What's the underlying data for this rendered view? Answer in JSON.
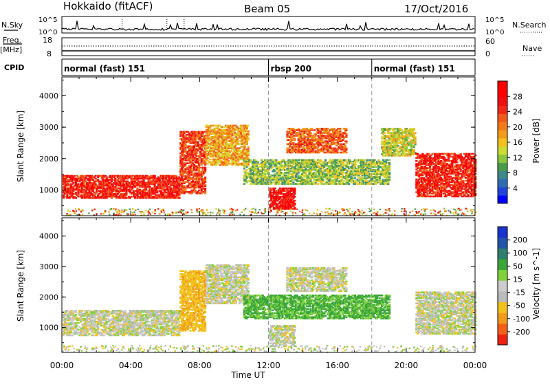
{
  "header": {
    "station": "Hokkaido (fitACF)",
    "beam": "Beam 05",
    "date": "17/Oct/2016"
  },
  "strip_labels": {
    "nsky": "N.Sky",
    "nsearch": "N.Search",
    "freq": "Freq.",
    "freq_unit": "[MHz]",
    "nave": "Nave",
    "cpid": "CPID"
  },
  "strip_ticks": {
    "nsky_left_top": "10^5",
    "nsky_left_bottom": "10^0",
    "nsky_right_top": "10^5",
    "nsky_right_bottom": "10^0",
    "freq_left_top": "18",
    "freq_left_bottom": "8",
    "nave_right_top": "60",
    "nave_right_bottom": "0"
  },
  "cpid_segments": [
    {
      "label": "normal (fast) 151",
      "start_hour": 0,
      "end_hour": 12
    },
    {
      "label": "rbsp 200",
      "start_hour": 12,
      "end_hour": 18
    },
    {
      "label": "normal (fast) 151",
      "start_hour": 18,
      "end_hour": 24
    }
  ],
  "chart_data": [
    {
      "type": "heatmap",
      "panel": "power",
      "ylabel": "Slant Range [km]",
      "xlabel": "",
      "y_ticks": [
        "1000",
        "2000",
        "3000",
        "4000"
      ],
      "xlim": [
        0,
        24
      ],
      "ylim": [
        180,
        4600
      ],
      "colorbar": {
        "label": "Power [dB]",
        "ticks": [
          "4",
          "8",
          "12",
          "16",
          "20",
          "24",
          "28"
        ],
        "range": [
          0,
          32
        ],
        "colors": [
          "#0000ff",
          "#2244dd",
          "#2e6db3",
          "#3a8a8a",
          "#4a9c4a",
          "#8cc63e",
          "#ccdd33",
          "#f2c21a",
          "#f29b1a",
          "#f27a1a",
          "#f25a1a",
          "#f02a1a",
          "#ee1111",
          "#ff0000",
          "#ff0000"
        ]
      },
      "features": [
        {
          "t": [
            0.0,
            6.8
          ],
          "r": [
            750,
            1500
          ],
          "power": 26
        },
        {
          "t": [
            6.8,
            8.3
          ],
          "r": [
            900,
            2900
          ],
          "power": 24
        },
        {
          "t": [
            8.3,
            10.8
          ],
          "r": [
            1800,
            3100
          ],
          "power": 18
        },
        {
          "t": [
            10.5,
            19.0
          ],
          "r": [
            1200,
            2000
          ],
          "power": 12
        },
        {
          "t": [
            12.0,
            13.5
          ],
          "r": [
            400,
            1100
          ],
          "power": 28
        },
        {
          "t": [
            13.0,
            16.5
          ],
          "r": [
            2200,
            3000
          ],
          "power": 22
        },
        {
          "t": [
            18.5,
            20.5
          ],
          "r": [
            2100,
            3000
          ],
          "power": 14
        },
        {
          "t": [
            20.5,
            24.0
          ],
          "r": [
            800,
            2200
          ],
          "power": 26
        }
      ]
    },
    {
      "type": "heatmap",
      "panel": "velocity",
      "ylabel": "Slant Range [km]",
      "xlabel": "Time UT",
      "x_ticks": [
        "00:00",
        "04:00",
        "08:00",
        "12:00",
        "16:00",
        "20:00",
        "00:00"
      ],
      "y_ticks": [
        "1000",
        "2000",
        "3000",
        "4000"
      ],
      "xlim": [
        0,
        24
      ],
      "ylim": [
        180,
        4600
      ],
      "colorbar": {
        "label": "Velocity [m s^-1]",
        "ticks": [
          "200",
          "100",
          "50",
          "15",
          "-15",
          "-50",
          "-100",
          "-200"
        ],
        "colors": [
          "#1a33cc",
          "#2255aa",
          "#2e7f6e",
          "#3aa63a",
          "#7fd23a",
          "#cccccc",
          "#bbbbbb",
          "#f2c21a",
          "#f29b1a",
          "#f2601a",
          "#ee2211"
        ]
      },
      "features": [
        {
          "t": [
            0.0,
            6.8
          ],
          "r": [
            750,
            1600
          ],
          "velocity": 0
        },
        {
          "t": [
            6.8,
            8.3
          ],
          "r": [
            900,
            2900
          ],
          "velocity": -40
        },
        {
          "t": [
            8.3,
            10.8
          ],
          "r": [
            1800,
            3100
          ],
          "velocity": 0
        },
        {
          "t": [
            10.5,
            19.0
          ],
          "r": [
            1300,
            2100
          ],
          "velocity": 40
        },
        {
          "t": [
            12.0,
            13.5
          ],
          "r": [
            400,
            1100
          ],
          "velocity": 0
        },
        {
          "t": [
            13.0,
            16.5
          ],
          "r": [
            2200,
            3000
          ],
          "velocity": 0
        },
        {
          "t": [
            20.5,
            24.0
          ],
          "r": [
            800,
            2200
          ],
          "velocity": 0
        }
      ]
    }
  ]
}
